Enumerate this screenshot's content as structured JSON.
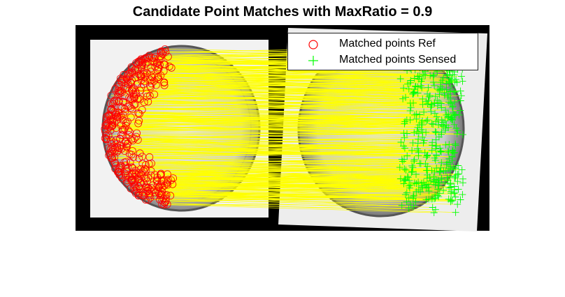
{
  "title": "Candidate Point Matches with MaxRatio = 0.9",
  "legend": {
    "entries": [
      {
        "label": "Matched points Ref",
        "marker": "red-circle-icon",
        "color": "#ff0000"
      },
      {
        "label": "Matched points Sensed",
        "marker": "green-plus-icon",
        "color": "#00ff00"
      }
    ]
  },
  "colors": {
    "match_line": "#ffff00",
    "ref_marker": "#ff0000",
    "sensed_marker": "#00ff00",
    "background": "#000000"
  }
}
